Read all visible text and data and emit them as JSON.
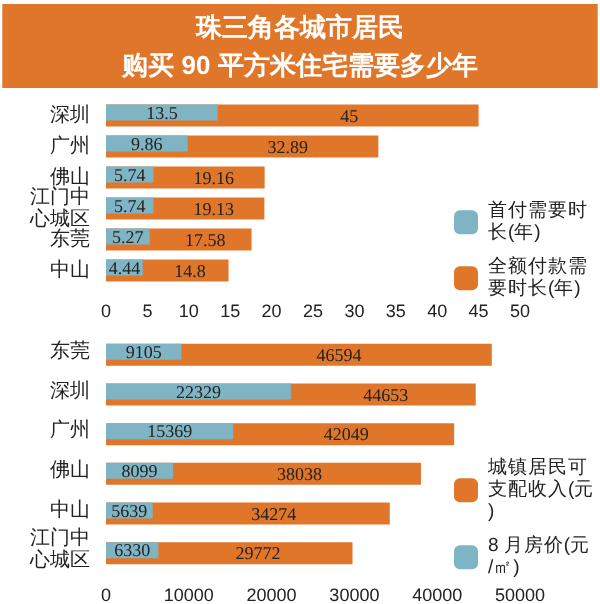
{
  "chart_data": [
    {
      "type": "bar",
      "orientation": "horizontal",
      "title": "珠三角各城市居民",
      "subtitle": "购买 90 平方米住宅需要多少年",
      "categories": [
        "深圳",
        "广州",
        "佛山",
        "江门中心城区",
        "东莞",
        "中山"
      ],
      "series": [
        {
          "name": "首付需要时长(年)",
          "color": "#7fb4c4",
          "values": [
            13.5,
            9.86,
            5.74,
            5.74,
            5.27,
            4.44
          ]
        },
        {
          "name": "全额付款需要时长(年)",
          "color": "#e0762a",
          "values": [
            45,
            32.89,
            19.16,
            19.13,
            17.58,
            14.8
          ]
        }
      ],
      "xlim": [
        0,
        50
      ],
      "xticks": [
        0,
        5,
        10,
        15,
        20,
        25,
        30,
        35,
        40,
        45,
        50
      ],
      "data_labels": true,
      "legend": "right",
      "grid": false
    },
    {
      "type": "bar",
      "orientation": "horizontal",
      "categories": [
        "东莞",
        "深圳",
        "广州",
        "佛山",
        "中山",
        "江门中心城区"
      ],
      "series": [
        {
          "name": "城镇居民可支配收入(元)",
          "color": "#e0762a",
          "values": [
            46594,
            44653,
            42049,
            38038,
            34274,
            29772
          ]
        },
        {
          "name": "8 月房价(元/㎡)",
          "color": "#7fb4c4",
          "values": [
            9105,
            22329,
            15369,
            8099,
            5639,
            6330
          ]
        }
      ],
      "xlim": [
        0,
        50000
      ],
      "xticks": [
        0,
        10000,
        20000,
        30000,
        40000,
        50000
      ],
      "data_labels": true,
      "legend": "right",
      "grid": false
    }
  ]
}
